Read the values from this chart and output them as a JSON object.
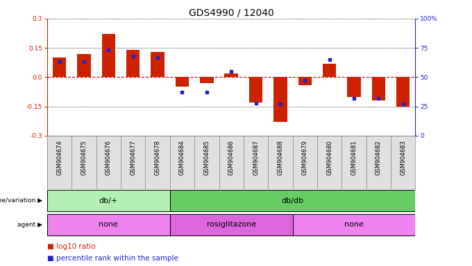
{
  "title": "GDS4990 / 12040",
  "samples": [
    "GSM904674",
    "GSM904675",
    "GSM904676",
    "GSM904677",
    "GSM904678",
    "GSM904684",
    "GSM904685",
    "GSM904686",
    "GSM904687",
    "GSM904688",
    "GSM904679",
    "GSM904680",
    "GSM904681",
    "GSM904682",
    "GSM904683"
  ],
  "log10_ratio": [
    0.1,
    0.12,
    0.22,
    0.14,
    0.13,
    -0.05,
    -0.03,
    0.02,
    -0.13,
    -0.23,
    -0.04,
    0.07,
    -0.1,
    -0.12,
    -0.15
  ],
  "percentile": [
    0.63,
    0.63,
    0.73,
    0.68,
    0.67,
    0.37,
    0.37,
    0.55,
    0.28,
    0.27,
    0.47,
    0.65,
    0.32,
    0.32,
    0.27
  ],
  "genotype_groups": [
    {
      "label": "db/+",
      "start": 0,
      "end": 5,
      "color": "#b2f0b2"
    },
    {
      "label": "db/db",
      "start": 5,
      "end": 15,
      "color": "#66cc66"
    }
  ],
  "agent_groups": [
    {
      "label": "none",
      "start": 0,
      "end": 5,
      "color": "#ee82ee"
    },
    {
      "label": "rosiglitazone",
      "start": 5,
      "end": 10,
      "color": "#dd66dd"
    },
    {
      "label": "none",
      "start": 10,
      "end": 15,
      "color": "#ee82ee"
    }
  ],
  "ylim": [
    -0.3,
    0.3
  ],
  "yticks_left": [
    -0.3,
    -0.15,
    0.0,
    0.15,
    0.3
  ],
  "yticks_right_pct": [
    0,
    25,
    50,
    75,
    100
  ],
  "bar_color": "#cc2200",
  "dot_color": "#2222cc",
  "zero_line_color": "#cc0000",
  "grid_color": "#333333",
  "title_fontsize": 10,
  "tick_fontsize": 6.5,
  "sample_fontsize": 6,
  "label_fontsize": 8,
  "legend_fontsize": 7.5,
  "background_color": "#ffffff"
}
